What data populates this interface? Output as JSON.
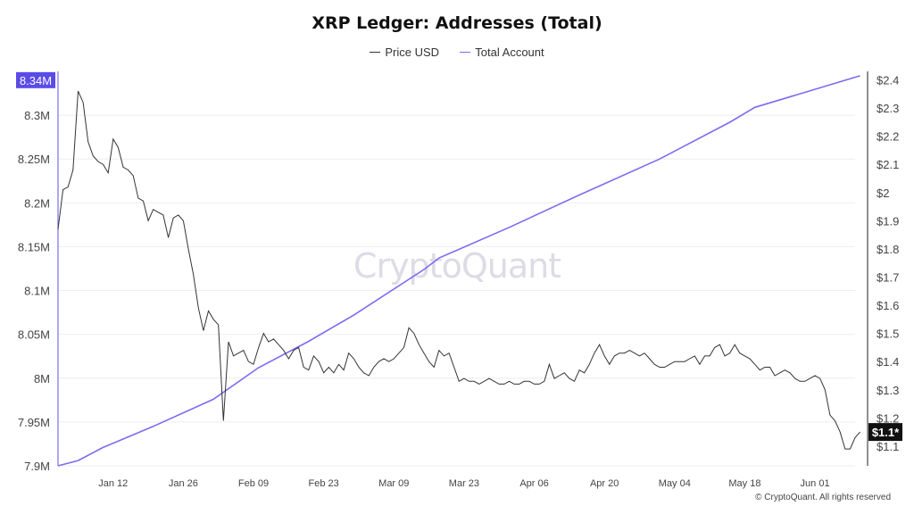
{
  "colors": {
    "price": "#333333",
    "accounts": "#7b6cf2",
    "grid": "#eeeeee",
    "highlight": "#5b4be8",
    "badge_dark": "#111111"
  },
  "watermark": "CryptoQuant",
  "credit": "© CryptoQuant. All rights reserved",
  "chart_data": {
    "type": "line",
    "title": "XRP Ledger: Addresses (Total)",
    "grid": "horizontal",
    "legend_position": "top-center",
    "x_tick_labels": [
      "Jan 12",
      "Jan 26",
      "Feb 09",
      "Feb 23",
      "Mar 09",
      "Mar 23",
      "Apr 06",
      "Apr 20",
      "May 04",
      "May 18",
      "Jun 01"
    ],
    "x_start": "2025-01-01",
    "x_end": "2025-06-09",
    "left_axis": {
      "ylim": [
        7.9,
        8.35
      ],
      "ticks": [
        "7.9M",
        "7.95M",
        "8M",
        "8.05M",
        "8.1M",
        "8.15M",
        "8.2M",
        "8.25M",
        "8.3M"
      ],
      "highlight_label": "8.34M",
      "highlight_value": 8.34
    },
    "right_axis": {
      "ylim": [
        1.03,
        2.43
      ],
      "ticks": [
        "$1.1",
        "$1.2",
        "$1.3",
        "$1.4",
        "$1.5",
        "$1.6",
        "$1.7",
        "$1.8",
        "$1.9",
        "$2",
        "$2.1",
        "$2.2",
        "$2.3",
        "$2.4"
      ],
      "highlight_label": "$1.1*",
      "highlight_value": 1.15
    },
    "series": [
      {
        "name": "Price USD",
        "axis": "right",
        "points": [
          [
            "2025-01-01",
            1.87
          ],
          [
            "2025-01-02",
            2.01
          ],
          [
            "2025-01-03",
            2.02
          ],
          [
            "2025-01-04",
            2.08
          ],
          [
            "2025-01-05",
            2.36
          ],
          [
            "2025-01-06",
            2.32
          ],
          [
            "2025-01-07",
            2.18
          ],
          [
            "2025-01-08",
            2.13
          ],
          [
            "2025-01-09",
            2.11
          ],
          [
            "2025-01-10",
            2.1
          ],
          [
            "2025-01-11",
            2.07
          ],
          [
            "2025-01-12",
            2.19
          ],
          [
            "2025-01-13",
            2.16
          ],
          [
            "2025-01-14",
            2.09
          ],
          [
            "2025-01-15",
            2.08
          ],
          [
            "2025-01-16",
            2.06
          ],
          [
            "2025-01-17",
            1.98
          ],
          [
            "2025-01-18",
            1.97
          ],
          [
            "2025-01-19",
            1.9
          ],
          [
            "2025-01-20",
            1.94
          ],
          [
            "2025-01-21",
            1.93
          ],
          [
            "2025-01-22",
            1.92
          ],
          [
            "2025-01-23",
            1.84
          ],
          [
            "2025-01-24",
            1.91
          ],
          [
            "2025-01-25",
            1.92
          ],
          [
            "2025-01-26",
            1.9
          ],
          [
            "2025-01-27",
            1.8
          ],
          [
            "2025-01-28",
            1.71
          ],
          [
            "2025-01-29",
            1.59
          ],
          [
            "2025-01-30",
            1.51
          ],
          [
            "2025-01-31",
            1.58
          ],
          [
            "2025-02-01",
            1.55
          ],
          [
            "2025-02-02",
            1.53
          ],
          [
            "2025-02-03",
            1.19
          ],
          [
            "2025-02-04",
            1.47
          ],
          [
            "2025-02-05",
            1.42
          ],
          [
            "2025-02-06",
            1.43
          ],
          [
            "2025-02-07",
            1.44
          ],
          [
            "2025-02-08",
            1.4
          ],
          [
            "2025-02-09",
            1.39
          ],
          [
            "2025-02-10",
            1.45
          ],
          [
            "2025-02-11",
            1.5
          ],
          [
            "2025-02-12",
            1.47
          ],
          [
            "2025-02-13",
            1.48
          ],
          [
            "2025-02-14",
            1.46
          ],
          [
            "2025-02-15",
            1.44
          ],
          [
            "2025-02-16",
            1.41
          ],
          [
            "2025-02-17",
            1.44
          ],
          [
            "2025-02-18",
            1.45
          ],
          [
            "2025-02-19",
            1.38
          ],
          [
            "2025-02-20",
            1.37
          ],
          [
            "2025-02-21",
            1.42
          ],
          [
            "2025-02-22",
            1.4
          ],
          [
            "2025-02-23",
            1.36
          ],
          [
            "2025-02-24",
            1.38
          ],
          [
            "2025-02-25",
            1.36
          ],
          [
            "2025-02-26",
            1.39
          ],
          [
            "2025-02-27",
            1.37
          ],
          [
            "2025-02-28",
            1.43
          ],
          [
            "2025-03-01",
            1.41
          ],
          [
            "2025-03-02",
            1.38
          ],
          [
            "2025-03-03",
            1.36
          ],
          [
            "2025-03-04",
            1.35
          ],
          [
            "2025-03-05",
            1.38
          ],
          [
            "2025-03-06",
            1.4
          ],
          [
            "2025-03-07",
            1.41
          ],
          [
            "2025-03-08",
            1.4
          ],
          [
            "2025-03-09",
            1.41
          ],
          [
            "2025-03-10",
            1.43
          ],
          [
            "2025-03-11",
            1.45
          ],
          [
            "2025-03-12",
            1.52
          ],
          [
            "2025-03-13",
            1.5
          ],
          [
            "2025-03-14",
            1.46
          ],
          [
            "2025-03-15",
            1.43
          ],
          [
            "2025-03-16",
            1.4
          ],
          [
            "2025-03-17",
            1.38
          ],
          [
            "2025-03-18",
            1.44
          ],
          [
            "2025-03-19",
            1.42
          ],
          [
            "2025-03-20",
            1.43
          ],
          [
            "2025-03-21",
            1.38
          ],
          [
            "2025-03-22",
            1.33
          ],
          [
            "2025-03-23",
            1.34
          ],
          [
            "2025-03-24",
            1.33
          ],
          [
            "2025-03-25",
            1.33
          ],
          [
            "2025-03-26",
            1.32
          ],
          [
            "2025-03-27",
            1.33
          ],
          [
            "2025-03-28",
            1.34
          ],
          [
            "2025-03-29",
            1.33
          ],
          [
            "2025-03-30",
            1.32
          ],
          [
            "2025-03-31",
            1.32
          ],
          [
            "2025-04-01",
            1.33
          ],
          [
            "2025-04-02",
            1.32
          ],
          [
            "2025-04-03",
            1.32
          ],
          [
            "2025-04-04",
            1.33
          ],
          [
            "2025-04-05",
            1.33
          ],
          [
            "2025-04-06",
            1.32
          ],
          [
            "2025-04-07",
            1.32
          ],
          [
            "2025-04-08",
            1.33
          ],
          [
            "2025-04-09",
            1.39
          ],
          [
            "2025-04-10",
            1.34
          ],
          [
            "2025-04-11",
            1.35
          ],
          [
            "2025-04-12",
            1.36
          ],
          [
            "2025-04-13",
            1.34
          ],
          [
            "2025-04-14",
            1.33
          ],
          [
            "2025-04-15",
            1.37
          ],
          [
            "2025-04-16",
            1.36
          ],
          [
            "2025-04-17",
            1.39
          ],
          [
            "2025-04-18",
            1.43
          ],
          [
            "2025-04-19",
            1.46
          ],
          [
            "2025-04-20",
            1.42
          ],
          [
            "2025-04-21",
            1.39
          ],
          [
            "2025-04-22",
            1.42
          ],
          [
            "2025-04-23",
            1.43
          ],
          [
            "2025-04-24",
            1.43
          ],
          [
            "2025-04-25",
            1.44
          ],
          [
            "2025-04-26",
            1.43
          ],
          [
            "2025-04-27",
            1.42
          ],
          [
            "2025-04-28",
            1.43
          ],
          [
            "2025-04-29",
            1.41
          ],
          [
            "2025-04-30",
            1.39
          ],
          [
            "2025-05-01",
            1.38
          ],
          [
            "2025-05-02",
            1.38
          ],
          [
            "2025-05-03",
            1.39
          ],
          [
            "2025-05-04",
            1.4
          ],
          [
            "2025-05-05",
            1.4
          ],
          [
            "2025-05-06",
            1.4
          ],
          [
            "2025-05-07",
            1.41
          ],
          [
            "2025-05-08",
            1.42
          ],
          [
            "2025-05-09",
            1.39
          ],
          [
            "2025-05-10",
            1.42
          ],
          [
            "2025-05-11",
            1.42
          ],
          [
            "2025-05-12",
            1.45
          ],
          [
            "2025-05-13",
            1.46
          ],
          [
            "2025-05-14",
            1.42
          ],
          [
            "2025-05-15",
            1.43
          ],
          [
            "2025-05-16",
            1.46
          ],
          [
            "2025-05-17",
            1.43
          ],
          [
            "2025-05-18",
            1.42
          ],
          [
            "2025-05-19",
            1.41
          ],
          [
            "2025-05-20",
            1.39
          ],
          [
            "2025-05-21",
            1.37
          ],
          [
            "2025-05-22",
            1.38
          ],
          [
            "2025-05-23",
            1.38
          ],
          [
            "2025-05-24",
            1.35
          ],
          [
            "2025-05-25",
            1.36
          ],
          [
            "2025-05-26",
            1.37
          ],
          [
            "2025-05-27",
            1.36
          ],
          [
            "2025-05-28",
            1.34
          ],
          [
            "2025-05-29",
            1.33
          ],
          [
            "2025-05-30",
            1.33
          ],
          [
            "2025-05-31",
            1.34
          ],
          [
            "2025-06-01",
            1.35
          ],
          [
            "2025-06-02",
            1.34
          ],
          [
            "2025-06-03",
            1.3
          ],
          [
            "2025-06-04",
            1.21
          ],
          [
            "2025-06-05",
            1.19
          ],
          [
            "2025-06-06",
            1.15
          ],
          [
            "2025-06-07",
            1.09
          ],
          [
            "2025-06-08",
            1.09
          ],
          [
            "2025-06-09",
            1.13
          ],
          [
            "2025-06-10",
            1.15
          ]
        ]
      },
      {
        "name": "Total Account",
        "axis": "left",
        "points": [
          [
            "2025-01-01",
            7.9
          ],
          [
            "2025-01-05",
            7.906
          ],
          [
            "2025-01-10",
            7.921
          ],
          [
            "2025-01-20",
            7.945
          ],
          [
            "2025-02-01",
            7.976
          ],
          [
            "2025-02-10",
            8.012
          ],
          [
            "2025-02-20",
            8.042
          ],
          [
            "2025-03-01",
            8.072
          ],
          [
            "2025-03-15",
            8.124
          ],
          [
            "2025-03-18",
            8.137
          ],
          [
            "2025-04-01",
            8.172
          ],
          [
            "2025-04-15",
            8.209
          ],
          [
            "2025-05-01",
            8.25
          ],
          [
            "2025-05-15",
            8.292
          ],
          [
            "2025-05-20",
            8.309
          ],
          [
            "2025-06-10",
            8.345
          ]
        ]
      }
    ]
  }
}
